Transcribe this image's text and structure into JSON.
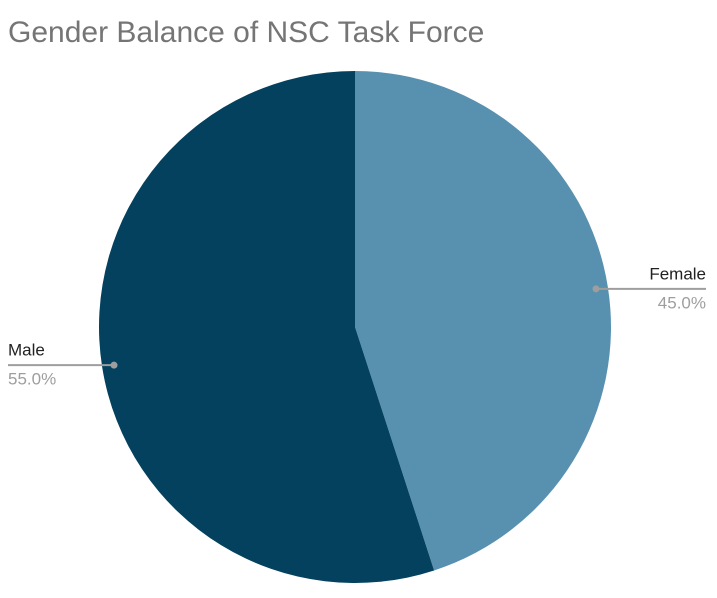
{
  "chart_data": {
    "type": "pie",
    "title": "Gender Balance of NSC Task Force",
    "categories": [
      "Female",
      "Male"
    ],
    "values": [
      45,
      55
    ],
    "value_labels": [
      "45.0%",
      "55.0%"
    ],
    "colors": [
      "#5891b0",
      "#03415e"
    ]
  }
}
